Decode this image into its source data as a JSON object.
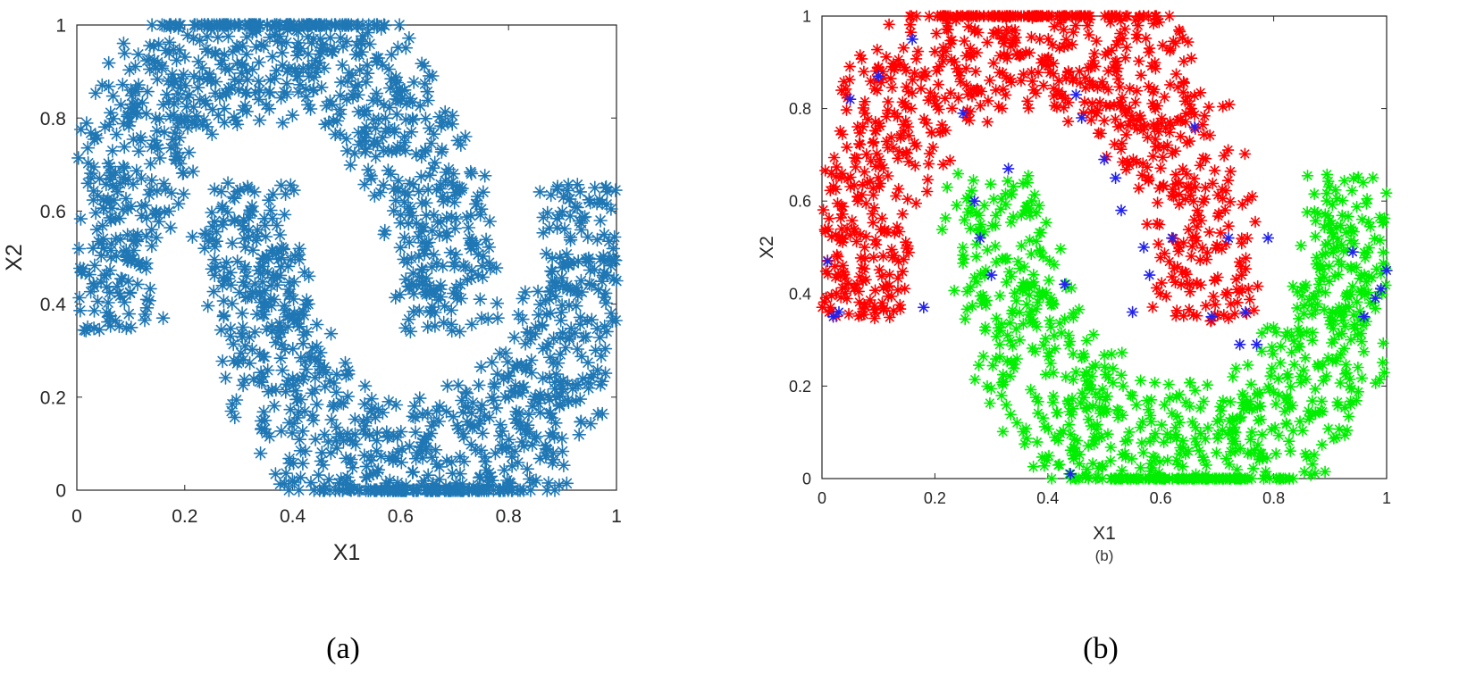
{
  "chart_data": [
    {
      "type": "scatter",
      "panel_label": "(a)",
      "xlabel": "X1",
      "ylabel": "X2",
      "xlim": [
        0,
        1
      ],
      "ylim": [
        0,
        1
      ],
      "xticks": [
        "0",
        "0.2",
        "0.4",
        "0.6",
        "0.8",
        "1"
      ],
      "yticks": [
        "0",
        "0.2",
        "0.4",
        "0.6",
        "0.8",
        "1"
      ],
      "marker": "asterisk",
      "grid": false,
      "series": [
        {
          "color": "#1f77b4",
          "shape": [
            {
              "kind": "upper-moon",
              "center": [
                0.365,
                0.34
              ],
              "radius": 0.325,
              "thickness": 0.11,
              "count": 900
            },
            {
              "kind": "lower-moon",
              "center": [
                0.635,
                0.66
              ],
              "radius": 0.325,
              "thickness": 0.11,
              "count": 900
            }
          ],
          "x": [
            0.01,
            0.02,
            0.03,
            0.1,
            0.13,
            0.16,
            0.27,
            0.28,
            0.3,
            0.33,
            0.43,
            0.45,
            0.5,
            0.62,
            0.68,
            0.72,
            0.75,
            0.78,
            0.96,
            0.99,
            1.0
          ],
          "y": [
            0.47,
            0.35,
            0.52,
            0.86,
            0.41,
            0.37,
            0.44,
            0.66,
            0.86,
            0.34,
            0.46,
            0.0,
            0.84,
            0.77,
            0.36,
            0.76,
            0.37,
            0.37,
            0.65,
            0.38,
            0.45
          ]
        }
      ]
    },
    {
      "type": "scatter",
      "panel_label": "(b)",
      "subtitle": "(b)",
      "xlabel": "X1",
      "ylabel": "X2",
      "xlim": [
        0,
        1
      ],
      "ylim": [
        0,
        1
      ],
      "xticks": [
        "0",
        "0.2",
        "0.4",
        "0.6",
        "0.8",
        "1"
      ],
      "yticks": [
        "0",
        "0.2",
        "0.4",
        "0.6",
        "0.8",
        "1"
      ],
      "marker": "asterisk",
      "grid": false,
      "series": [
        {
          "color": "#ff0000",
          "shape": [
            {
              "kind": "upper-moon",
              "center": [
                0.365,
                0.34
              ],
              "radius": 0.325,
              "thickness": 0.11,
              "count": 900
            }
          ]
        },
        {
          "color": "#00ee00",
          "shape": [
            {
              "kind": "lower-moon",
              "center": [
                0.635,
                0.66
              ],
              "radius": 0.325,
              "thickness": 0.11,
              "count": 900
            }
          ]
        },
        {
          "color": "#2222ee",
          "x": [
            0.01,
            0.02,
            0.03,
            0.05,
            0.1,
            0.16,
            0.18,
            0.25,
            0.27,
            0.28,
            0.3,
            0.33,
            0.43,
            0.44,
            0.45,
            0.46,
            0.5,
            0.52,
            0.53,
            0.55,
            0.57,
            0.58,
            0.62,
            0.66,
            0.69,
            0.72,
            0.74,
            0.75,
            0.77,
            0.79,
            0.94,
            0.96,
            0.98,
            0.99,
            1.0
          ],
          "y": [
            0.47,
            0.35,
            0.36,
            0.82,
            0.87,
            0.95,
            0.37,
            0.79,
            0.6,
            0.52,
            0.44,
            0.67,
            0.42,
            0.01,
            0.83,
            0.78,
            0.69,
            0.65,
            0.58,
            0.36,
            0.5,
            0.44,
            0.52,
            0.76,
            0.35,
            0.52,
            0.29,
            0.36,
            0.29,
            0.52,
            0.49,
            0.35,
            0.39,
            0.41,
            0.45
          ]
        }
      ]
    }
  ],
  "captions": {
    "a": "(a)",
    "b": "(b)"
  }
}
